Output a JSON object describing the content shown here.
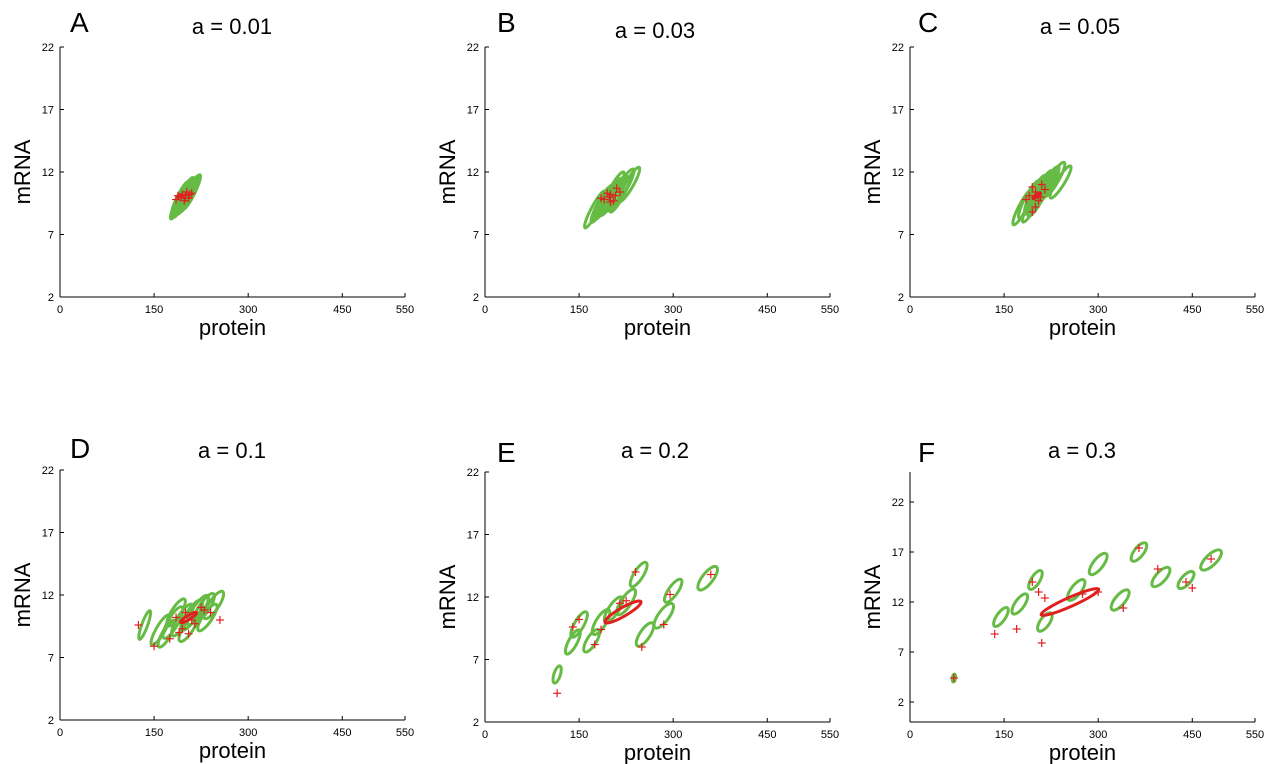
{
  "colors": {
    "ellipse": "#66bb44",
    "mean_ellipse": "#e02020",
    "marker": "#e02020",
    "axis": "#000000"
  },
  "chart_data": [
    {
      "type": "scatter",
      "panel": "A",
      "title": "a = 0.01",
      "xlabel": "protein",
      "ylabel": "mRNA",
      "xlim": [
        0,
        550
      ],
      "ylim": [
        2,
        22
      ],
      "xticks": [
        0,
        150,
        300,
        450,
        550
      ],
      "yticks": [
        2,
        7,
        12,
        17,
        22
      ],
      "points": [
        [
          190,
          10
        ],
        [
          195,
          10.2
        ],
        [
          200,
          10.1
        ],
        [
          205,
          9.9
        ],
        [
          198,
          9.7
        ],
        [
          210,
          10.3
        ],
        [
          185,
          9.8
        ],
        [
          202,
          10.4
        ],
        [
          193,
          10.0
        ],
        [
          207,
          10.2
        ],
        [
          188,
          10.1
        ],
        [
          200,
          9.9
        ]
      ],
      "ellipses": [
        {
          "cx": 190,
          "cy": 9.6,
          "rx": 105,
          "ry": 18,
          "angle": 64
        },
        {
          "cx": 195,
          "cy": 9.8,
          "rx": 110,
          "ry": 19,
          "angle": 64
        },
        {
          "cx": 200,
          "cy": 10.0,
          "rx": 108,
          "ry": 20,
          "angle": 64
        },
        {
          "cx": 205,
          "cy": 10.2,
          "rx": 110,
          "ry": 19,
          "angle": 64
        },
        {
          "cx": 210,
          "cy": 10.4,
          "rx": 106,
          "ry": 18,
          "angle": 64
        },
        {
          "cx": 198,
          "cy": 10.1,
          "rx": 112,
          "ry": 21,
          "angle": 64
        },
        {
          "cx": 192,
          "cy": 9.9,
          "rx": 104,
          "ry": 20,
          "angle": 64
        },
        {
          "cx": 207,
          "cy": 10.3,
          "rx": 109,
          "ry": 18,
          "angle": 64
        }
      ],
      "mean_ellipse": null
    },
    {
      "type": "scatter",
      "panel": "B",
      "title": "a = 0.03",
      "xlabel": "protein",
      "ylabel": "mRNA",
      "xlim": [
        0,
        550
      ],
      "ylim": [
        2,
        22
      ],
      "xticks": [
        0,
        150,
        300,
        450,
        550
      ],
      "yticks": [
        2,
        7,
        12,
        17,
        22
      ],
      "points": [
        [
          190,
          9.8
        ],
        [
          200,
          10.2
        ],
        [
          210,
          10.7
        ],
        [
          205,
          9.7
        ],
        [
          198,
          10.0
        ],
        [
          215,
          10.4
        ],
        [
          185,
          9.9
        ],
        [
          195,
          10.3
        ],
        [
          208,
          10.1
        ],
        [
          200,
          9.6
        ]
      ],
      "ellipses": [
        {
          "cx": 175,
          "cy": 9.0,
          "rx": 115,
          "ry": 20,
          "angle": 62
        },
        {
          "cx": 190,
          "cy": 9.6,
          "rx": 110,
          "ry": 22,
          "angle": 62
        },
        {
          "cx": 200,
          "cy": 10.0,
          "rx": 115,
          "ry": 24,
          "angle": 62
        },
        {
          "cx": 210,
          "cy": 10.3,
          "rx": 112,
          "ry": 22,
          "angle": 62
        },
        {
          "cx": 205,
          "cy": 10.5,
          "rx": 118,
          "ry": 23,
          "angle": 62
        },
        {
          "cx": 215,
          "cy": 10.2,
          "rx": 110,
          "ry": 21,
          "angle": 62
        },
        {
          "cx": 220,
          "cy": 10.8,
          "rx": 115,
          "ry": 24,
          "angle": 60
        },
        {
          "cx": 195,
          "cy": 9.8,
          "rx": 108,
          "ry": 22,
          "angle": 62
        },
        {
          "cx": 230,
          "cy": 11.0,
          "rx": 110,
          "ry": 22,
          "angle": 60
        },
        {
          "cx": 185,
          "cy": 9.4,
          "rx": 112,
          "ry": 20,
          "angle": 62
        }
      ],
      "mean_ellipse": null
    },
    {
      "type": "scatter",
      "panel": "C",
      "title": "a = 0.05",
      "xlabel": "protein",
      "ylabel": "mRNA",
      "xlim": [
        0,
        550
      ],
      "ylim": [
        2,
        22
      ],
      "xticks": [
        0,
        150,
        300,
        450,
        550
      ],
      "yticks": [
        2,
        7,
        12,
        17,
        22
      ],
      "points": [
        [
          185,
          9.8
        ],
        [
          195,
          8.8
        ],
        [
          200,
          10.4
        ],
        [
          210,
          11.0
        ],
        [
          205,
          9.7
        ],
        [
          190,
          10.1
        ],
        [
          200,
          9.2
        ],
        [
          215,
          10.6
        ],
        [
          195,
          10.8
        ],
        [
          208,
          10.0
        ]
      ],
      "ellipses": [
        {
          "cx": 180,
          "cy": 9.2,
          "rx": 112,
          "ry": 22,
          "angle": 62
        },
        {
          "cx": 190,
          "cy": 9.8,
          "rx": 118,
          "ry": 24,
          "angle": 62
        },
        {
          "cx": 200,
          "cy": 10.2,
          "rx": 120,
          "ry": 26,
          "angle": 62
        },
        {
          "cx": 210,
          "cy": 10.6,
          "rx": 118,
          "ry": 24,
          "angle": 62
        },
        {
          "cx": 220,
          "cy": 11.0,
          "rx": 115,
          "ry": 24,
          "angle": 60
        },
        {
          "cx": 230,
          "cy": 11.4,
          "rx": 110,
          "ry": 24,
          "angle": 60
        },
        {
          "cx": 195,
          "cy": 9.4,
          "rx": 110,
          "ry": 22,
          "angle": 62
        },
        {
          "cx": 205,
          "cy": 10.0,
          "rx": 120,
          "ry": 25,
          "angle": 62
        },
        {
          "cx": 215,
          "cy": 10.8,
          "rx": 112,
          "ry": 22,
          "angle": 60
        },
        {
          "cx": 240,
          "cy": 11.2,
          "rx": 105,
          "ry": 22,
          "angle": 58
        }
      ],
      "mean_ellipse": {
        "cx": 202,
        "cy": 10.1,
        "rx": 26,
        "ry": 7,
        "angle": 35
      }
    },
    {
      "type": "scatter",
      "panel": "D",
      "title": "a = 0.1",
      "xlabel": "protein",
      "ylabel": "mRNA",
      "xlim": [
        0,
        550
      ],
      "ylim": [
        2,
        22
      ],
      "xticks": [
        0,
        150,
        300,
        450,
        550
      ],
      "yticks": [
        2,
        7,
        12,
        17,
        22
      ],
      "points": [
        [
          125,
          9.6
        ],
        [
          150,
          7.9
        ],
        [
          175,
          8.5
        ],
        [
          185,
          10.2
        ],
        [
          195,
          9.3
        ],
        [
          205,
          8.9
        ],
        [
          210,
          10.0
        ],
        [
          215,
          9.7
        ],
        [
          225,
          11.0
        ],
        [
          230,
          10.8
        ],
        [
          240,
          10.6
        ],
        [
          255,
          10.0
        ],
        [
          200,
          10.6
        ],
        [
          190,
          9.0
        ]
      ],
      "ellipses": [
        {
          "cx": 135,
          "cy": 9.6,
          "rx": 85,
          "ry": 16,
          "angle": 70
        },
        {
          "cx": 160,
          "cy": 9.2,
          "rx": 95,
          "ry": 24,
          "angle": 60
        },
        {
          "cx": 180,
          "cy": 9.8,
          "rx": 100,
          "ry": 28,
          "angle": 60
        },
        {
          "cx": 195,
          "cy": 10.0,
          "rx": 102,
          "ry": 30,
          "angle": 58
        },
        {
          "cx": 210,
          "cy": 10.4,
          "rx": 100,
          "ry": 30,
          "angle": 56
        },
        {
          "cx": 220,
          "cy": 10.8,
          "rx": 96,
          "ry": 28,
          "angle": 56
        },
        {
          "cx": 230,
          "cy": 11.0,
          "rx": 92,
          "ry": 28,
          "angle": 56
        },
        {
          "cx": 245,
          "cy": 11.2,
          "rx": 90,
          "ry": 28,
          "angle": 56
        },
        {
          "cx": 205,
          "cy": 9.4,
          "rx": 90,
          "ry": 28,
          "angle": 58
        },
        {
          "cx": 185,
          "cy": 10.6,
          "rx": 88,
          "ry": 26,
          "angle": 58
        },
        {
          "cx": 235,
          "cy": 10.2,
          "rx": 88,
          "ry": 26,
          "angle": 56
        },
        {
          "cx": 170,
          "cy": 8.9,
          "rx": 85,
          "ry": 24,
          "angle": 60
        }
      ],
      "mean_ellipse": {
        "cx": 205,
        "cy": 10.2,
        "rx": 52,
        "ry": 11,
        "angle": 32
      }
    },
    {
      "type": "scatter",
      "panel": "E",
      "title": "a = 0.2",
      "xlabel": "protein",
      "ylabel": "mRNA",
      "xlim": [
        0,
        550
      ],
      "ylim": [
        2,
        22
      ],
      "xticks": [
        0,
        150,
        300,
        450,
        550
      ],
      "yticks": [
        2,
        7,
        12,
        17,
        22
      ],
      "points": [
        [
          115,
          4.3
        ],
        [
          140,
          9.6
        ],
        [
          150,
          10.2
        ],
        [
          175,
          8.2
        ],
        [
          185,
          9.4
        ],
        [
          215,
          11.5
        ],
        [
          225,
          11.7
        ],
        [
          240,
          14.0
        ],
        [
          250,
          8.0
        ],
        [
          285,
          9.8
        ],
        [
          295,
          12.2
        ],
        [
          360,
          13.8
        ]
      ],
      "ellipses": [
        {
          "cx": 115,
          "cy": 5.8,
          "rx": 50,
          "ry": 18,
          "angle": 72
        },
        {
          "cx": 140,
          "cy": 8.4,
          "rx": 75,
          "ry": 24,
          "angle": 62
        },
        {
          "cx": 150,
          "cy": 9.8,
          "rx": 80,
          "ry": 26,
          "angle": 60
        },
        {
          "cx": 170,
          "cy": 8.5,
          "rx": 72,
          "ry": 26,
          "angle": 58
        },
        {
          "cx": 185,
          "cy": 10.0,
          "rx": 80,
          "ry": 28,
          "angle": 58
        },
        {
          "cx": 205,
          "cy": 11.0,
          "rx": 82,
          "ry": 28,
          "angle": 56
        },
        {
          "cx": 225,
          "cy": 11.6,
          "rx": 84,
          "ry": 28,
          "angle": 56
        },
        {
          "cx": 245,
          "cy": 13.8,
          "rx": 78,
          "ry": 26,
          "angle": 58
        },
        {
          "cx": 255,
          "cy": 9.0,
          "rx": 76,
          "ry": 28,
          "angle": 56
        },
        {
          "cx": 285,
          "cy": 10.5,
          "rx": 82,
          "ry": 30,
          "angle": 54
        },
        {
          "cx": 300,
          "cy": 12.5,
          "rx": 76,
          "ry": 26,
          "angle": 55
        },
        {
          "cx": 355,
          "cy": 13.5,
          "rx": 80,
          "ry": 30,
          "angle": 52
        }
      ],
      "mean_ellipse": {
        "cx": 220,
        "cy": 10.8,
        "rx": 115,
        "ry": 24,
        "angle": 30
      }
    },
    {
      "type": "scatter",
      "panel": "F",
      "title": "a = 0.3",
      "xlabel": "protein",
      "ylabel": "mRNA",
      "xlim": [
        0,
        550
      ],
      "ylim": [
        0,
        25
      ],
      "xticks": [
        0,
        150,
        300,
        450,
        550
      ],
      "yticks": [
        2,
        7,
        12,
        17,
        22
      ],
      "points": [
        [
          70,
          4.4
        ],
        [
          135,
          8.8
        ],
        [
          170,
          9.3
        ],
        [
          195,
          14.0
        ],
        [
          205,
          13.0
        ],
        [
          210,
          7.9
        ],
        [
          215,
          12.4
        ],
        [
          275,
          12.8
        ],
        [
          300,
          13.0
        ],
        [
          340,
          11.4
        ],
        [
          365,
          17.4
        ],
        [
          395,
          15.3
        ],
        [
          440,
          14.0
        ],
        [
          450,
          13.4
        ],
        [
          480,
          16.3
        ]
      ],
      "ellipses": [
        {
          "cx": 70,
          "cy": 4.4,
          "rx": 22,
          "ry": 9,
          "angle": 82
        },
        {
          "cx": 145,
          "cy": 10.5,
          "rx": 62,
          "ry": 24,
          "angle": 55
        },
        {
          "cx": 175,
          "cy": 11.8,
          "rx": 66,
          "ry": 26,
          "angle": 55
        },
        {
          "cx": 200,
          "cy": 14.2,
          "rx": 60,
          "ry": 24,
          "angle": 58
        },
        {
          "cx": 215,
          "cy": 10.0,
          "rx": 60,
          "ry": 26,
          "angle": 55
        },
        {
          "cx": 265,
          "cy": 13.2,
          "rx": 70,
          "ry": 28,
          "angle": 52
        },
        {
          "cx": 300,
          "cy": 15.8,
          "rx": 72,
          "ry": 28,
          "angle": 52
        },
        {
          "cx": 335,
          "cy": 12.2,
          "rx": 70,
          "ry": 28,
          "angle": 50
        },
        {
          "cx": 365,
          "cy": 17.0,
          "rx": 62,
          "ry": 26,
          "angle": 52
        },
        {
          "cx": 400,
          "cy": 14.5,
          "rx": 68,
          "ry": 28,
          "angle": 48
        },
        {
          "cx": 440,
          "cy": 14.2,
          "rx": 60,
          "ry": 26,
          "angle": 48
        },
        {
          "cx": 480,
          "cy": 16.2,
          "rx": 75,
          "ry": 30,
          "angle": 44
        }
      ],
      "mean_ellipse": {
        "cx": 255,
        "cy": 12.0,
        "rx": 175,
        "ry": 25,
        "angle": 24
      }
    }
  ]
}
